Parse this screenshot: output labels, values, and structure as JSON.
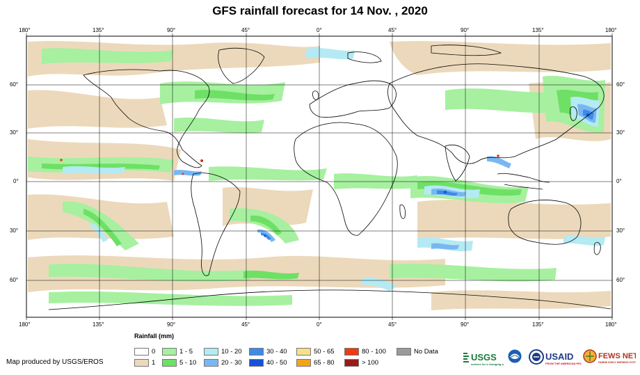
{
  "title": "GFS rainfall forecast for 14 Nov. , 2020",
  "map": {
    "lon_labels": [
      "180°",
      "135°",
      "90°",
      "45°",
      "0°",
      "45°",
      "90°",
      "135°",
      "180°"
    ],
    "lat_labels": [
      "60°",
      "30°",
      "0°",
      "30°",
      "60°"
    ]
  },
  "legend": {
    "title": "Rainfall (mm)",
    "items": [
      {
        "label": "0",
        "color": "#ffffff"
      },
      {
        "label": "1",
        "color": "#ecd9bb"
      },
      {
        "label": "1 - 5",
        "color": "#a6f0a0"
      },
      {
        "label": "5 - 10",
        "color": "#6ee065"
      },
      {
        "label": "10 - 20",
        "color": "#b4eaf3"
      },
      {
        "label": "20 - 30",
        "color": "#78b7f2"
      },
      {
        "label": "30 - 40",
        "color": "#3d8ae8"
      },
      {
        "label": "40 - 50",
        "color": "#1452d6"
      },
      {
        "label": "50 - 65",
        "color": "#f7e08a"
      },
      {
        "label": "65 - 80",
        "color": "#f5a316"
      },
      {
        "label": "80 - 100",
        "color": "#ee3b12"
      },
      {
        "label": "> 100",
        "color": "#9c1a1a"
      },
      {
        "label": "No Data",
        "color": "#9a9a9a"
      }
    ]
  },
  "footer": {
    "producer": "Map produced by USGS/EROS",
    "logos": [
      "USGS",
      "USAID",
      "FEWS NET"
    ]
  }
}
